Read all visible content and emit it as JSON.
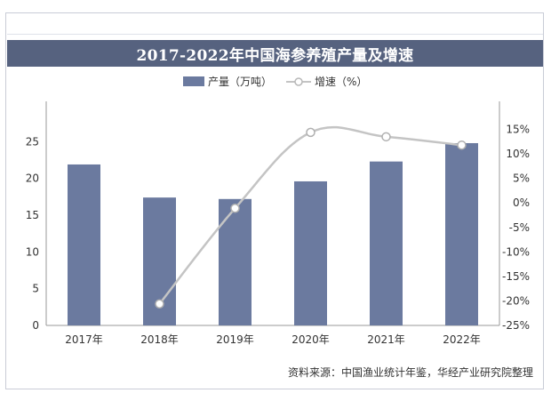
{
  "chart_data": {
    "type": "bar",
    "title": "2017-2022年中国海参养殖产量及增速",
    "categories": [
      "2017年",
      "2018年",
      "2019年",
      "2020年",
      "2021年",
      "2022年"
    ],
    "series": [
      {
        "name": "产量（万吨）",
        "type": "bar",
        "axis": "left",
        "color": "#6b7a9f",
        "values": [
          21.9,
          17.4,
          17.2,
          19.6,
          22.3,
          24.8
        ]
      },
      {
        "name": "增速（%）",
        "type": "line",
        "axis": "right",
        "color": "#c4c4c4",
        "values": [
          null,
          -20.6,
          -1.1,
          14.4,
          13.5,
          11.8
        ]
      }
    ],
    "y_left": {
      "ylim": [
        0,
        30
      ],
      "ticks": [
        "0",
        "5",
        "10",
        "15",
        "20",
        "25"
      ]
    },
    "y_right": {
      "ylim": [
        -25,
        20
      ],
      "ticks": [
        "15%",
        "10%",
        "5%",
        "0%",
        "-5%",
        "-10%",
        "-15%",
        "-20%",
        "-25%"
      ]
    },
    "legend": {
      "position": "top"
    },
    "grid": false
  },
  "source": "资料来源：中国渔业统计年鉴，华经产业研究院整理"
}
